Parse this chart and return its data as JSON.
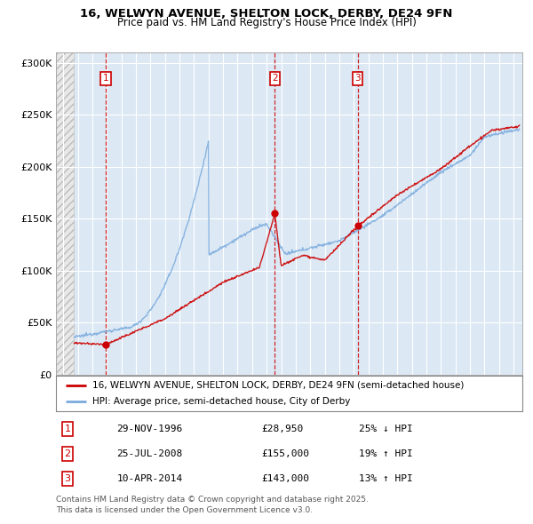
{
  "title1": "16, WELWYN AVENUE, SHELTON LOCK, DERBY, DE24 9FN",
  "title2": "Price paid vs. HM Land Registry's House Price Index (HPI)",
  "legend_line1": "16, WELWYN AVENUE, SHELTON LOCK, DERBY, DE24 9FN (semi-detached house)",
  "legend_line2": "HPI: Average price, semi-detached house, City of Derby",
  "sale_points": [
    {
      "label": "1",
      "date_str": "29-NOV-1996",
      "price": 28950,
      "hpi_rel": "25% ↓ HPI",
      "x": 1996.92
    },
    {
      "label": "2",
      "date_str": "25-JUL-2008",
      "price": 155000,
      "hpi_rel": "19% ↑ HPI",
      "x": 2008.56
    },
    {
      "label": "3",
      "date_str": "10-APR-2014",
      "price": 143000,
      "hpi_rel": "13% ↑ HPI",
      "x": 2014.28
    }
  ],
  "footer": "Contains HM Land Registry data © Crown copyright and database right 2025.\nThis data is licensed under the Open Government Licence v3.0.",
  "hatch_xmin": 1993.5,
  "hatch_xmax": 1994.75,
  "ylim": [
    0,
    310000
  ],
  "xlim_left": 1993.5,
  "xlim_right": 2025.6,
  "yticks": [
    0,
    50000,
    100000,
    150000,
    200000,
    250000,
    300000
  ],
  "ytick_labels": [
    "£0",
    "£50K",
    "£100K",
    "£150K",
    "£200K",
    "£250K",
    "£300K"
  ],
  "bg_color": "#dce9f5",
  "red_line_color": "#cc0000",
  "blue_line_color": "#7aaadd",
  "sale_dot_color": "#cc0000",
  "grid_color": "#ffffff",
  "box_color": "#cc0000"
}
